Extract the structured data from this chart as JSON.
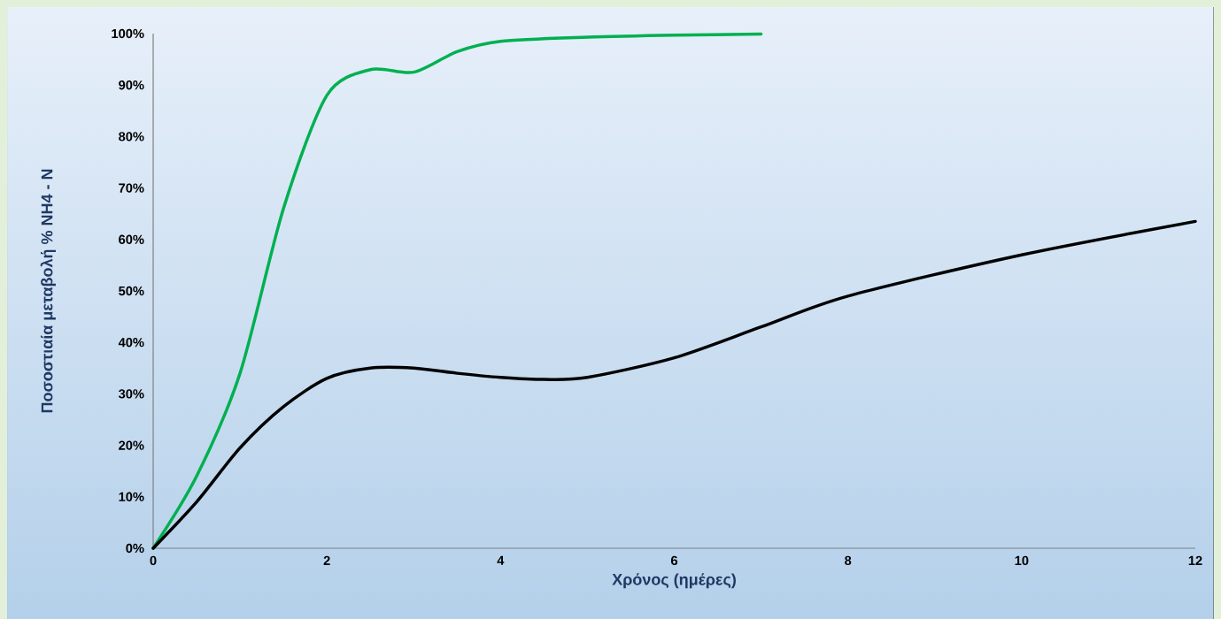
{
  "chart_data": {
    "type": "line",
    "xlabel": "Χρόνος (ημέρες)",
    "ylabel": "Ποσοστιαία μεταβολή % NH4 - N",
    "xlim": [
      0,
      12
    ],
    "xticks": [
      0,
      2,
      4,
      6,
      8,
      10,
      12
    ],
    "ylim": [
      0,
      100
    ],
    "yticks": [
      {
        "value": 0,
        "label": "0%"
      },
      {
        "value": 10,
        "label": "10%"
      },
      {
        "value": 20,
        "label": "20%"
      },
      {
        "value": 30,
        "label": "30%"
      },
      {
        "value": 40,
        "label": "40%"
      },
      {
        "value": 50,
        "label": "50%"
      },
      {
        "value": 60,
        "label": "60%"
      },
      {
        "value": 70,
        "label": "70%"
      },
      {
        "value": 80,
        "label": "80%"
      },
      {
        "value": 90,
        "label": "90%"
      },
      {
        "value": 100,
        "label": "100%"
      }
    ],
    "grid": false,
    "marker": "none",
    "line_style": "solid",
    "series": [
      {
        "color": "#00b050",
        "x": [
          0,
          0.5,
          1,
          1.5,
          2,
          2.5,
          3,
          3.5,
          4,
          5,
          6,
          7
        ],
        "values": [
          0,
          14,
          34,
          66,
          88,
          93,
          92.5,
          96.5,
          98.5,
          99.3,
          99.7,
          99.9
        ]
      },
      {
        "color": "#000000",
        "x": [
          0,
          0.5,
          1,
          1.5,
          2,
          2.5,
          3,
          3.5,
          4,
          4.5,
          5,
          6,
          7,
          8,
          10,
          12
        ],
        "values": [
          0,
          9,
          19.5,
          27.5,
          33,
          35,
          35,
          34,
          33.2,
          32.8,
          33.2,
          37,
          43,
          49,
          57,
          63.5
        ]
      }
    ]
  }
}
